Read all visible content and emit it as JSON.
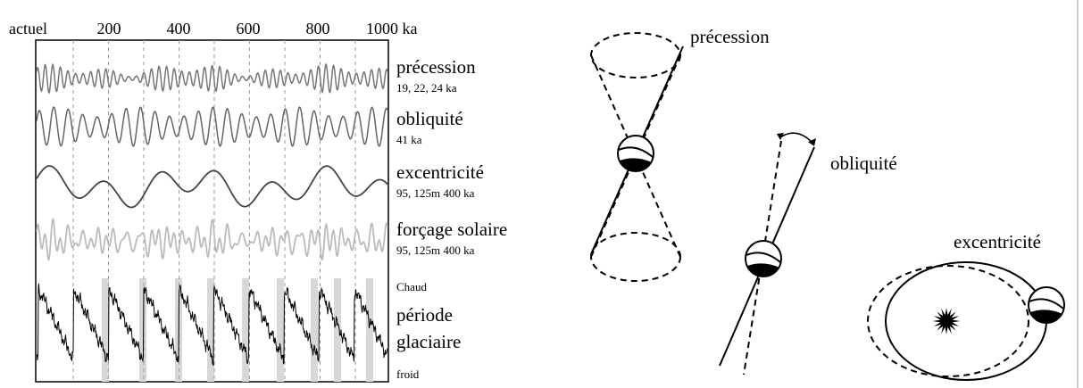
{
  "axis": {
    "labels": [
      "actuel",
      "200",
      "400",
      "600",
      "800",
      "1000 ka"
    ]
  },
  "curves": [
    {
      "name": "précession",
      "periods": "19, 22, 24 ka"
    },
    {
      "name": "obliquité",
      "periods": "41 ka"
    },
    {
      "name": "excentricité",
      "periods": "95, 125m 400 ka"
    },
    {
      "name": "forçage solaire",
      "periods": "95, 125m 400 ka"
    }
  ],
  "glacial": {
    "warm": "Chaud",
    "name_line1": "période",
    "name_line2": "glaciaire",
    "cold": "froid"
  },
  "diagram": {
    "precession": "précession",
    "obliquity": "obliquité",
    "eccentricity": "excentricité"
  }
}
